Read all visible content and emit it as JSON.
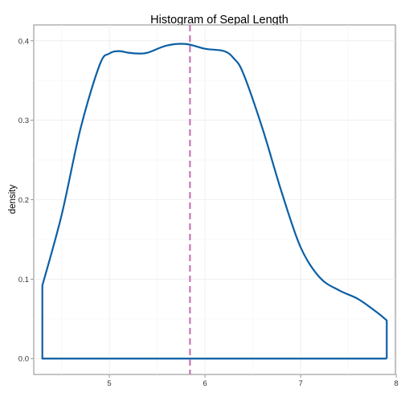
{
  "chart_data": {
    "type": "area",
    "title": "Histogram of Sepal Length",
    "xlabel": "",
    "ylabel": "density",
    "xlim": [
      4.21,
      7.99
    ],
    "ylim": [
      -0.02,
      0.42
    ],
    "x_ticks": [
      5,
      6,
      7,
      8
    ],
    "x_tick_labels": [
      "5",
      "6",
      "7",
      "8"
    ],
    "y_ticks": [
      0.0,
      0.1,
      0.2,
      0.3,
      0.4
    ],
    "y_tick_labels": [
      "0.0",
      "0.1",
      "0.2",
      "0.3",
      "0.4"
    ],
    "grid": true,
    "series": [
      {
        "x": [
          4.3,
          4.5,
          4.7,
          4.9,
          5.0,
          5.1,
          5.2,
          5.3,
          5.4,
          5.6,
          5.8,
          6.0,
          6.2,
          6.3,
          6.4,
          6.6,
          6.8,
          7.0,
          7.2,
          7.4,
          7.6,
          7.8,
          7.9
        ],
        "y": [
          0.092,
          0.18,
          0.29,
          0.37,
          0.384,
          0.387,
          0.385,
          0.384,
          0.385,
          0.394,
          0.396,
          0.39,
          0.387,
          0.378,
          0.359,
          0.29,
          0.21,
          0.14,
          0.102,
          0.086,
          0.075,
          0.058,
          0.048
        ],
        "color": "#0b5fa5"
      }
    ],
    "reference_line": {
      "x": 5.843,
      "color": "#c777b0",
      "style": "dashed"
    }
  }
}
